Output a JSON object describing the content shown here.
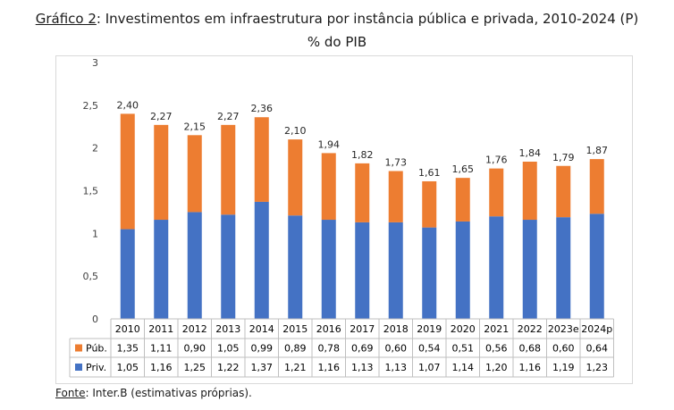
{
  "header": {
    "title_label": "Gráfico 2",
    "title_text": ": Investimentos em infraestrutura por instância pública e privada, 2010-2024 (P)",
    "subtitle": "% do PIB"
  },
  "footer": {
    "source_label": "Fonte",
    "source_text": ": Inter.B (estimativas próprias)."
  },
  "chart_data": {
    "type": "bar",
    "stacked": true,
    "categories": [
      "2010",
      "2011",
      "2012",
      "2013",
      "2014",
      "2015",
      "2016",
      "2017",
      "2018",
      "2019",
      "2020",
      "2021",
      "2022",
      "2023e",
      "2024p"
    ],
    "series": [
      {
        "name": "Priv.",
        "color": "#4472C4",
        "values": [
          1.05,
          1.16,
          1.25,
          1.22,
          1.37,
          1.21,
          1.16,
          1.13,
          1.13,
          1.07,
          1.14,
          1.2,
          1.16,
          1.19,
          1.23
        ],
        "labels": [
          "1,05",
          "1,16",
          "1,25",
          "1,22",
          "1,37",
          "1,21",
          "1,16",
          "1,13",
          "1,13",
          "1,07",
          "1,14",
          "1,20",
          "1,16",
          "1,19",
          "1,23"
        ]
      },
      {
        "name": "Púb.",
        "color": "#ED7D31",
        "values": [
          1.35,
          1.11,
          0.9,
          1.05,
          0.99,
          0.89,
          0.78,
          0.69,
          0.6,
          0.54,
          0.51,
          0.56,
          0.68,
          0.6,
          0.64
        ],
        "labels": [
          "1,35",
          "1,11",
          "0,90",
          "1,05",
          "0,99",
          "0,89",
          "0,78",
          "0,69",
          "0,60",
          "0,54",
          "0,51",
          "0,56",
          "0,68",
          "0,60",
          "0,64"
        ]
      }
    ],
    "totals": [
      2.4,
      2.27,
      2.15,
      2.27,
      2.36,
      2.1,
      1.94,
      1.82,
      1.73,
      1.61,
      1.65,
      1.76,
      1.84,
      1.79,
      1.87
    ],
    "total_labels": [
      "2,40",
      "2,27",
      "2,15",
      "2,27",
      "2,36",
      "2,10",
      "1,94",
      "1,82",
      "1,73",
      "1,61",
      "1,65",
      "1,76",
      "1,84",
      "1,79",
      "1,87"
    ],
    "yticks": [
      0,
      0.5,
      1,
      1.5,
      2,
      2.5,
      3
    ],
    "ytick_labels": [
      "0",
      "0,5",
      "1",
      "1,5",
      "2",
      "2,5",
      "3"
    ],
    "ylim": [
      0,
      3
    ],
    "grid": false,
    "legend": "data-table-rows"
  }
}
